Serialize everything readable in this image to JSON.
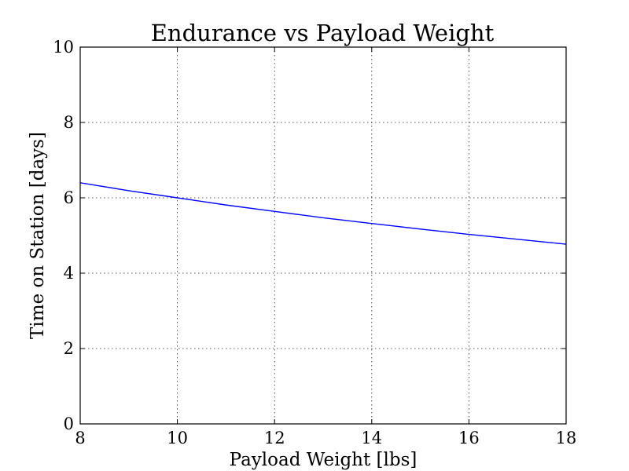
{
  "chart_data": {
    "type": "line",
    "title": "Endurance vs Payload Weight",
    "xlabel": "Payload Weight [lbs]",
    "ylabel": "Time on Station [days]",
    "xlim": [
      8,
      18
    ],
    "ylim": [
      0,
      10
    ],
    "xticks": [
      8,
      10,
      12,
      14,
      16,
      18
    ],
    "yticks": [
      0,
      2,
      4,
      6,
      8,
      10
    ],
    "grid": true,
    "series": [
      {
        "color": "#0000ff",
        "x": [
          8,
          9,
          10,
          11,
          12,
          13,
          14,
          15,
          16,
          17,
          18
        ],
        "y": [
          6.4,
          6.19,
          6.0,
          5.81,
          5.64,
          5.47,
          5.32,
          5.17,
          5.03,
          4.9,
          4.77
        ]
      }
    ]
  }
}
